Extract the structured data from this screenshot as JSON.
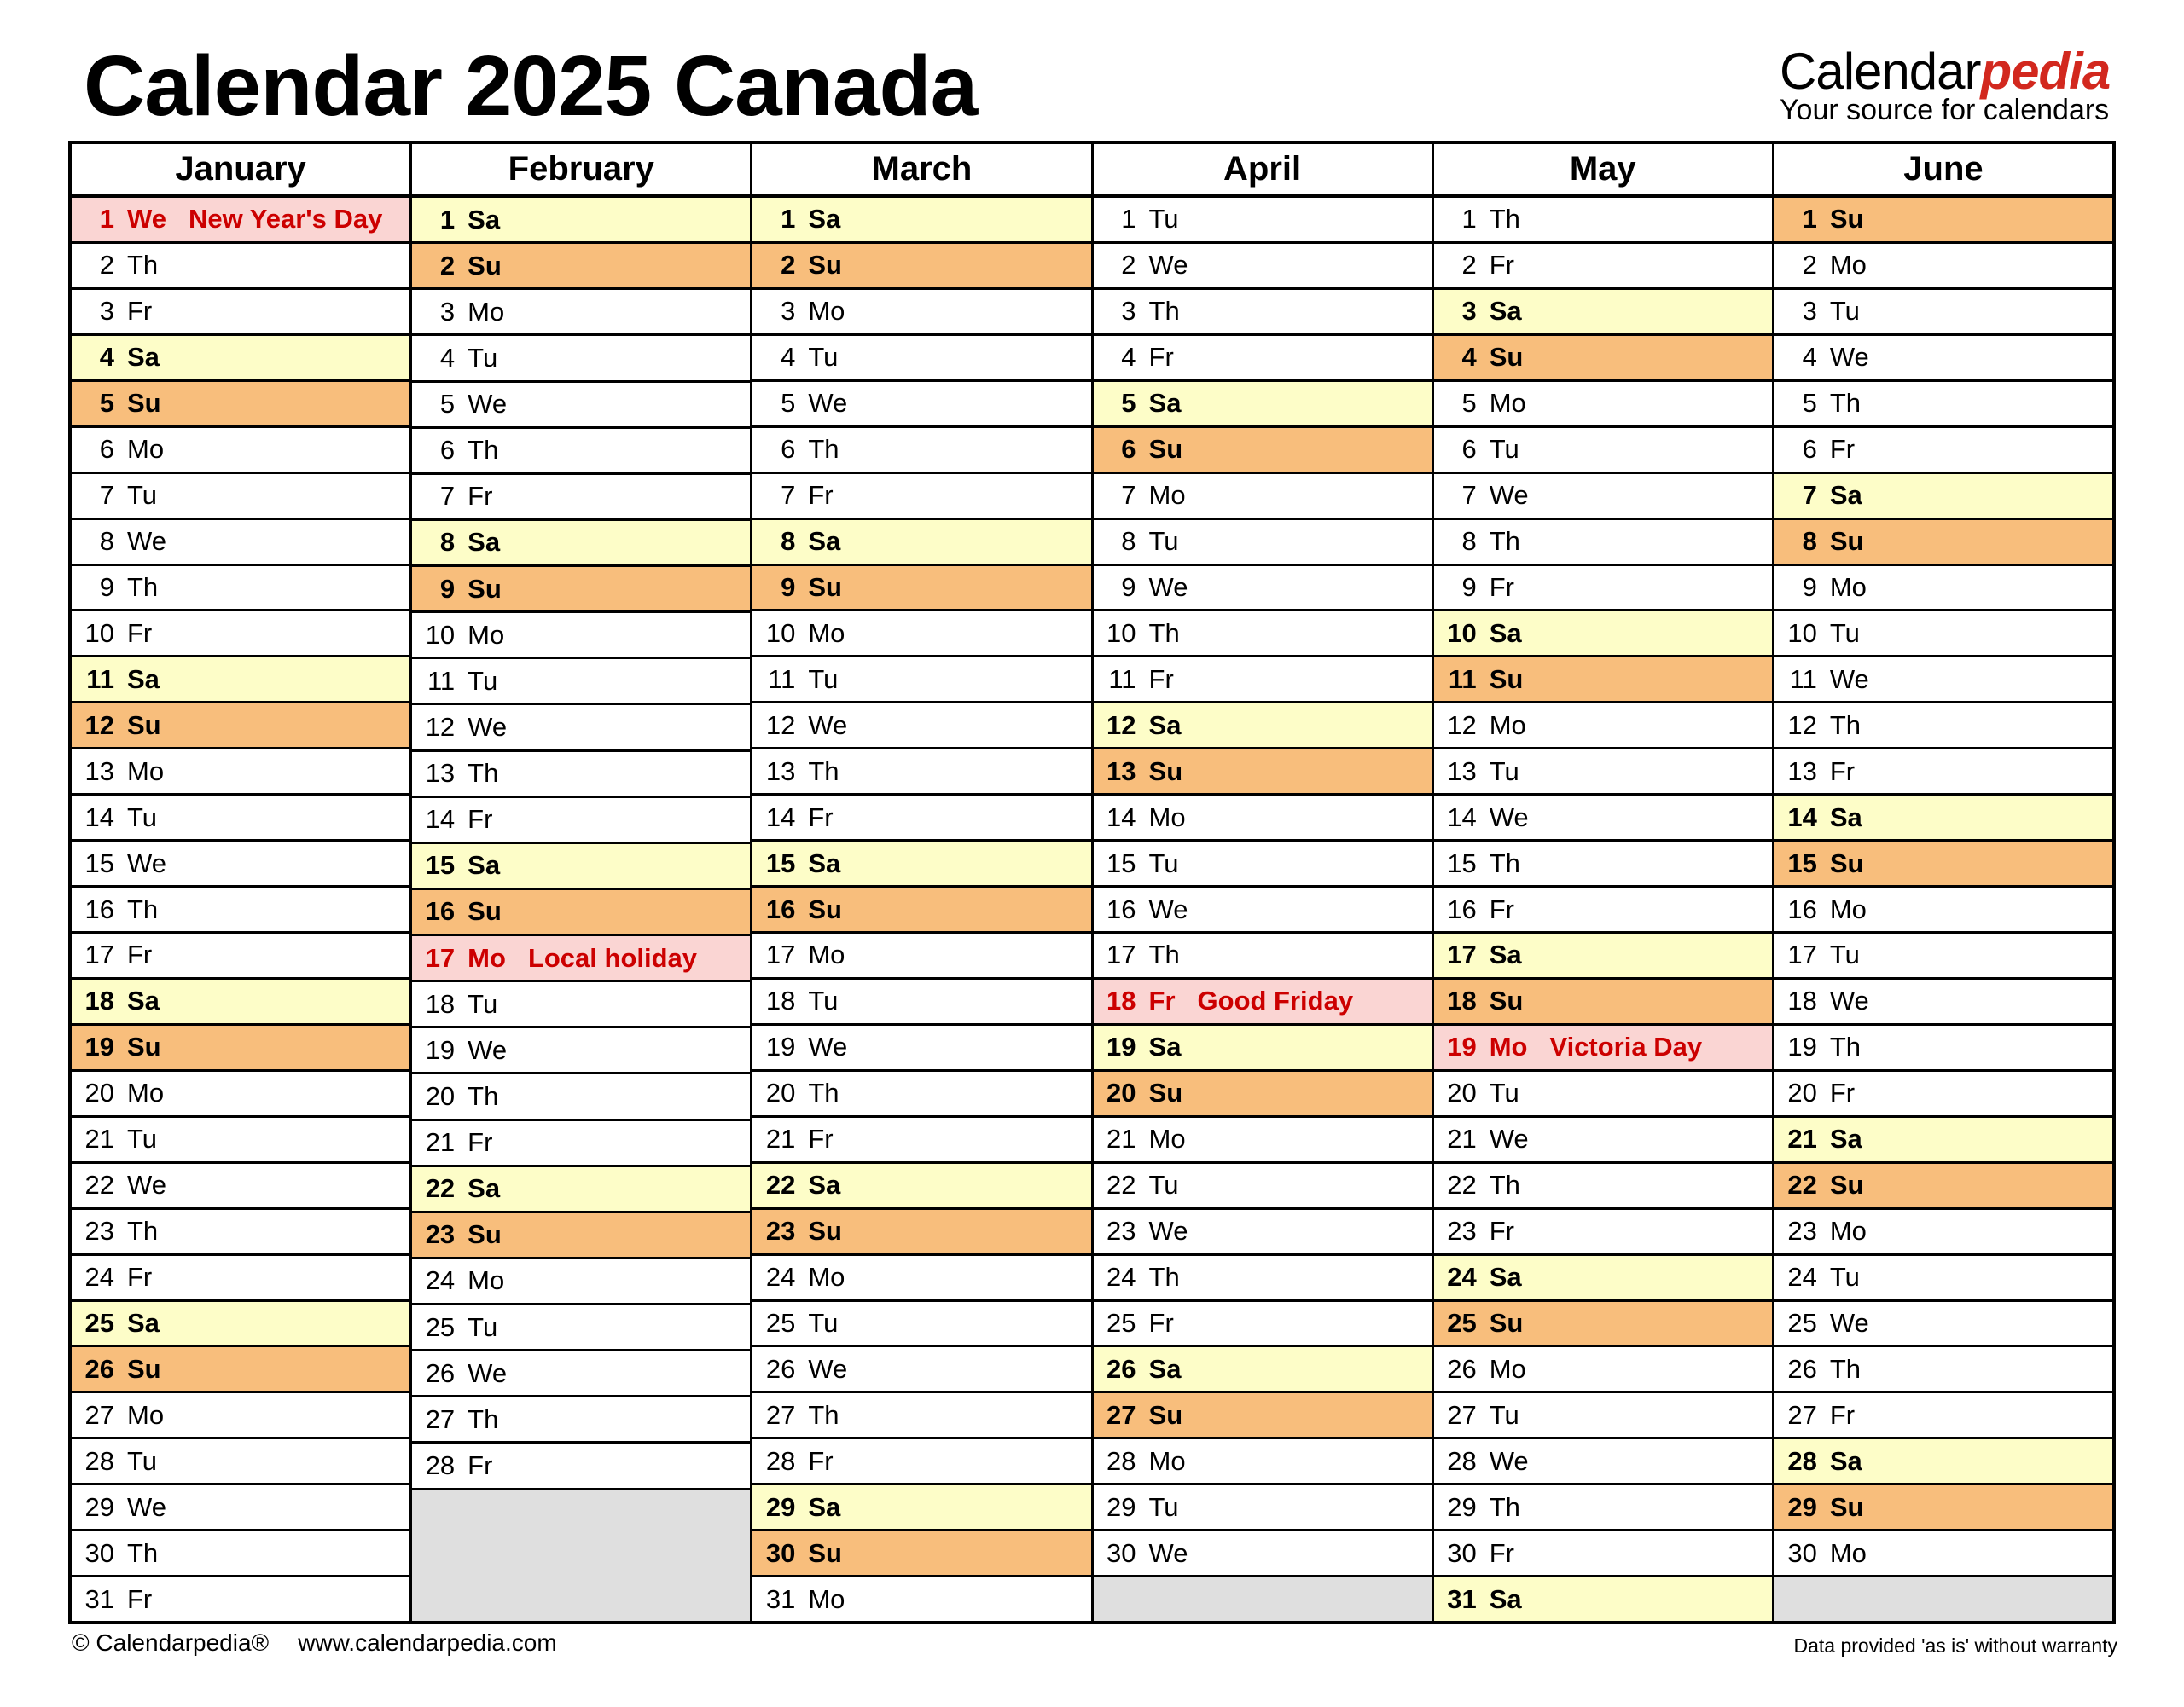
{
  "title": "Calendar 2025 Canada",
  "logo": {
    "brand_black": "Calendar",
    "brand_red": "pedia",
    "tagline": "Your source for calendars"
  },
  "footer": {
    "copyright": "© Calendarpedia®",
    "website": "www.calendarpedia.com",
    "disclaimer": "Data provided 'as is' without warranty"
  },
  "colors": {
    "saturday_bg": "#FDFDC8",
    "sunday_bg": "#F8BE7C",
    "holiday_bg": "#FAD5D3",
    "holiday_text": "#CC0000",
    "empty_bg": "#DFDFDF",
    "brand_red": "#D2281E"
  },
  "months": [
    {
      "name": "January",
      "days": [
        {
          "n": 1,
          "w": "We",
          "t": "hd",
          "h": "New Year's Day"
        },
        {
          "n": 2,
          "w": "Th",
          "t": "wd"
        },
        {
          "n": 3,
          "w": "Fr",
          "t": "wd"
        },
        {
          "n": 4,
          "w": "Sa",
          "t": "sa"
        },
        {
          "n": 5,
          "w": "Su",
          "t": "su"
        },
        {
          "n": 6,
          "w": "Mo",
          "t": "wd"
        },
        {
          "n": 7,
          "w": "Tu",
          "t": "wd"
        },
        {
          "n": 8,
          "w": "We",
          "t": "wd"
        },
        {
          "n": 9,
          "w": "Th",
          "t": "wd"
        },
        {
          "n": 10,
          "w": "Fr",
          "t": "wd"
        },
        {
          "n": 11,
          "w": "Sa",
          "t": "sa"
        },
        {
          "n": 12,
          "w": "Su",
          "t": "su"
        },
        {
          "n": 13,
          "w": "Mo",
          "t": "wd"
        },
        {
          "n": 14,
          "w": "Tu",
          "t": "wd"
        },
        {
          "n": 15,
          "w": "We",
          "t": "wd"
        },
        {
          "n": 16,
          "w": "Th",
          "t": "wd"
        },
        {
          "n": 17,
          "w": "Fr",
          "t": "wd"
        },
        {
          "n": 18,
          "w": "Sa",
          "t": "sa"
        },
        {
          "n": 19,
          "w": "Su",
          "t": "su"
        },
        {
          "n": 20,
          "w": "Mo",
          "t": "wd"
        },
        {
          "n": 21,
          "w": "Tu",
          "t": "wd"
        },
        {
          "n": 22,
          "w": "We",
          "t": "wd"
        },
        {
          "n": 23,
          "w": "Th",
          "t": "wd"
        },
        {
          "n": 24,
          "w": "Fr",
          "t": "wd"
        },
        {
          "n": 25,
          "w": "Sa",
          "t": "sa"
        },
        {
          "n": 26,
          "w": "Su",
          "t": "su"
        },
        {
          "n": 27,
          "w": "Mo",
          "t": "wd"
        },
        {
          "n": 28,
          "w": "Tu",
          "t": "wd"
        },
        {
          "n": 29,
          "w": "We",
          "t": "wd"
        },
        {
          "n": 30,
          "w": "Th",
          "t": "wd"
        },
        {
          "n": 31,
          "w": "Fr",
          "t": "wd"
        }
      ]
    },
    {
      "name": "February",
      "days": [
        {
          "n": 1,
          "w": "Sa",
          "t": "sa"
        },
        {
          "n": 2,
          "w": "Su",
          "t": "su"
        },
        {
          "n": 3,
          "w": "Mo",
          "t": "wd"
        },
        {
          "n": 4,
          "w": "Tu",
          "t": "wd"
        },
        {
          "n": 5,
          "w": "We",
          "t": "wd"
        },
        {
          "n": 6,
          "w": "Th",
          "t": "wd"
        },
        {
          "n": 7,
          "w": "Fr",
          "t": "wd"
        },
        {
          "n": 8,
          "w": "Sa",
          "t": "sa"
        },
        {
          "n": 9,
          "w": "Su",
          "t": "su"
        },
        {
          "n": 10,
          "w": "Mo",
          "t": "wd"
        },
        {
          "n": 11,
          "w": "Tu",
          "t": "wd"
        },
        {
          "n": 12,
          "w": "We",
          "t": "wd"
        },
        {
          "n": 13,
          "w": "Th",
          "t": "wd"
        },
        {
          "n": 14,
          "w": "Fr",
          "t": "wd"
        },
        {
          "n": 15,
          "w": "Sa",
          "t": "sa"
        },
        {
          "n": 16,
          "w": "Su",
          "t": "su"
        },
        {
          "n": 17,
          "w": "Mo",
          "t": "hd",
          "h": "Local holiday"
        },
        {
          "n": 18,
          "w": "Tu",
          "t": "wd"
        },
        {
          "n": 19,
          "w": "We",
          "t": "wd"
        },
        {
          "n": 20,
          "w": "Th",
          "t": "wd"
        },
        {
          "n": 21,
          "w": "Fr",
          "t": "wd"
        },
        {
          "n": 22,
          "w": "Sa",
          "t": "sa"
        },
        {
          "n": 23,
          "w": "Su",
          "t": "su"
        },
        {
          "n": 24,
          "w": "Mo",
          "t": "wd"
        },
        {
          "n": 25,
          "w": "Tu",
          "t": "wd"
        },
        {
          "n": 26,
          "w": "We",
          "t": "wd"
        },
        {
          "n": 27,
          "w": "Th",
          "t": "wd"
        },
        {
          "n": 28,
          "w": "Fr",
          "t": "wd"
        },
        {
          "t": "e"
        },
        {
          "t": "e"
        },
        {
          "t": "e"
        }
      ]
    },
    {
      "name": "March",
      "days": [
        {
          "n": 1,
          "w": "Sa",
          "t": "sa"
        },
        {
          "n": 2,
          "w": "Su",
          "t": "su"
        },
        {
          "n": 3,
          "w": "Mo",
          "t": "wd"
        },
        {
          "n": 4,
          "w": "Tu",
          "t": "wd"
        },
        {
          "n": 5,
          "w": "We",
          "t": "wd"
        },
        {
          "n": 6,
          "w": "Th",
          "t": "wd"
        },
        {
          "n": 7,
          "w": "Fr",
          "t": "wd"
        },
        {
          "n": 8,
          "w": "Sa",
          "t": "sa"
        },
        {
          "n": 9,
          "w": "Su",
          "t": "su"
        },
        {
          "n": 10,
          "w": "Mo",
          "t": "wd"
        },
        {
          "n": 11,
          "w": "Tu",
          "t": "wd"
        },
        {
          "n": 12,
          "w": "We",
          "t": "wd"
        },
        {
          "n": 13,
          "w": "Th",
          "t": "wd"
        },
        {
          "n": 14,
          "w": "Fr",
          "t": "wd"
        },
        {
          "n": 15,
          "w": "Sa",
          "t": "sa"
        },
        {
          "n": 16,
          "w": "Su",
          "t": "su"
        },
        {
          "n": 17,
          "w": "Mo",
          "t": "wd"
        },
        {
          "n": 18,
          "w": "Tu",
          "t": "wd"
        },
        {
          "n": 19,
          "w": "We",
          "t": "wd"
        },
        {
          "n": 20,
          "w": "Th",
          "t": "wd"
        },
        {
          "n": 21,
          "w": "Fr",
          "t": "wd"
        },
        {
          "n": 22,
          "w": "Sa",
          "t": "sa"
        },
        {
          "n": 23,
          "w": "Su",
          "t": "su"
        },
        {
          "n": 24,
          "w": "Mo",
          "t": "wd"
        },
        {
          "n": 25,
          "w": "Tu",
          "t": "wd"
        },
        {
          "n": 26,
          "w": "We",
          "t": "wd"
        },
        {
          "n": 27,
          "w": "Th",
          "t": "wd"
        },
        {
          "n": 28,
          "w": "Fr",
          "t": "wd"
        },
        {
          "n": 29,
          "w": "Sa",
          "t": "sa"
        },
        {
          "n": 30,
          "w": "Su",
          "t": "su"
        },
        {
          "n": 31,
          "w": "Mo",
          "t": "wd"
        }
      ]
    },
    {
      "name": "April",
      "days": [
        {
          "n": 1,
          "w": "Tu",
          "t": "wd"
        },
        {
          "n": 2,
          "w": "We",
          "t": "wd"
        },
        {
          "n": 3,
          "w": "Th",
          "t": "wd"
        },
        {
          "n": 4,
          "w": "Fr",
          "t": "wd"
        },
        {
          "n": 5,
          "w": "Sa",
          "t": "sa"
        },
        {
          "n": 6,
          "w": "Su",
          "t": "su"
        },
        {
          "n": 7,
          "w": "Mo",
          "t": "wd"
        },
        {
          "n": 8,
          "w": "Tu",
          "t": "wd"
        },
        {
          "n": 9,
          "w": "We",
          "t": "wd"
        },
        {
          "n": 10,
          "w": "Th",
          "t": "wd"
        },
        {
          "n": 11,
          "w": "Fr",
          "t": "wd"
        },
        {
          "n": 12,
          "w": "Sa",
          "t": "sa"
        },
        {
          "n": 13,
          "w": "Su",
          "t": "su"
        },
        {
          "n": 14,
          "w": "Mo",
          "t": "wd"
        },
        {
          "n": 15,
          "w": "Tu",
          "t": "wd"
        },
        {
          "n": 16,
          "w": "We",
          "t": "wd"
        },
        {
          "n": 17,
          "w": "Th",
          "t": "wd"
        },
        {
          "n": 18,
          "w": "Fr",
          "t": "hd",
          "h": "Good Friday"
        },
        {
          "n": 19,
          "w": "Sa",
          "t": "sa"
        },
        {
          "n": 20,
          "w": "Su",
          "t": "su"
        },
        {
          "n": 21,
          "w": "Mo",
          "t": "wd"
        },
        {
          "n": 22,
          "w": "Tu",
          "t": "wd"
        },
        {
          "n": 23,
          "w": "We",
          "t": "wd"
        },
        {
          "n": 24,
          "w": "Th",
          "t": "wd"
        },
        {
          "n": 25,
          "w": "Fr",
          "t": "wd"
        },
        {
          "n": 26,
          "w": "Sa",
          "t": "sa"
        },
        {
          "n": 27,
          "w": "Su",
          "t": "su"
        },
        {
          "n": 28,
          "w": "Mo",
          "t": "wd"
        },
        {
          "n": 29,
          "w": "Tu",
          "t": "wd"
        },
        {
          "n": 30,
          "w": "We",
          "t": "wd"
        },
        {
          "t": "e"
        }
      ]
    },
    {
      "name": "May",
      "days": [
        {
          "n": 1,
          "w": "Th",
          "t": "wd"
        },
        {
          "n": 2,
          "w": "Fr",
          "t": "wd"
        },
        {
          "n": 3,
          "w": "Sa",
          "t": "sa"
        },
        {
          "n": 4,
          "w": "Su",
          "t": "su"
        },
        {
          "n": 5,
          "w": "Mo",
          "t": "wd"
        },
        {
          "n": 6,
          "w": "Tu",
          "t": "wd"
        },
        {
          "n": 7,
          "w": "We",
          "t": "wd"
        },
        {
          "n": 8,
          "w": "Th",
          "t": "wd"
        },
        {
          "n": 9,
          "w": "Fr",
          "t": "wd"
        },
        {
          "n": 10,
          "w": "Sa",
          "t": "sa"
        },
        {
          "n": 11,
          "w": "Su",
          "t": "su"
        },
        {
          "n": 12,
          "w": "Mo",
          "t": "wd"
        },
        {
          "n": 13,
          "w": "Tu",
          "t": "wd"
        },
        {
          "n": 14,
          "w": "We",
          "t": "wd"
        },
        {
          "n": 15,
          "w": "Th",
          "t": "wd"
        },
        {
          "n": 16,
          "w": "Fr",
          "t": "wd"
        },
        {
          "n": 17,
          "w": "Sa",
          "t": "sa"
        },
        {
          "n": 18,
          "w": "Su",
          "t": "su"
        },
        {
          "n": 19,
          "w": "Mo",
          "t": "hd",
          "h": "Victoria Day"
        },
        {
          "n": 20,
          "w": "Tu",
          "t": "wd"
        },
        {
          "n": 21,
          "w": "We",
          "t": "wd"
        },
        {
          "n": 22,
          "w": "Th",
          "t": "wd"
        },
        {
          "n": 23,
          "w": "Fr",
          "t": "wd"
        },
        {
          "n": 24,
          "w": "Sa",
          "t": "sa"
        },
        {
          "n": 25,
          "w": "Su",
          "t": "su"
        },
        {
          "n": 26,
          "w": "Mo",
          "t": "wd"
        },
        {
          "n": 27,
          "w": "Tu",
          "t": "wd"
        },
        {
          "n": 28,
          "w": "We",
          "t": "wd"
        },
        {
          "n": 29,
          "w": "Th",
          "t": "wd"
        },
        {
          "n": 30,
          "w": "Fr",
          "t": "wd"
        },
        {
          "n": 31,
          "w": "Sa",
          "t": "sa"
        }
      ]
    },
    {
      "name": "June",
      "days": [
        {
          "n": 1,
          "w": "Su",
          "t": "su"
        },
        {
          "n": 2,
          "w": "Mo",
          "t": "wd"
        },
        {
          "n": 3,
          "w": "Tu",
          "t": "wd"
        },
        {
          "n": 4,
          "w": "We",
          "t": "wd"
        },
        {
          "n": 5,
          "w": "Th",
          "t": "wd"
        },
        {
          "n": 6,
          "w": "Fr",
          "t": "wd"
        },
        {
          "n": 7,
          "w": "Sa",
          "t": "sa"
        },
        {
          "n": 8,
          "w": "Su",
          "t": "su"
        },
        {
          "n": 9,
          "w": "Mo",
          "t": "wd"
        },
        {
          "n": 10,
          "w": "Tu",
          "t": "wd"
        },
        {
          "n": 11,
          "w": "We",
          "t": "wd"
        },
        {
          "n": 12,
          "w": "Th",
          "t": "wd"
        },
        {
          "n": 13,
          "w": "Fr",
          "t": "wd"
        },
        {
          "n": 14,
          "w": "Sa",
          "t": "sa"
        },
        {
          "n": 15,
          "w": "Su",
          "t": "su"
        },
        {
          "n": 16,
          "w": "Mo",
          "t": "wd"
        },
        {
          "n": 17,
          "w": "Tu",
          "t": "wd"
        },
        {
          "n": 18,
          "w": "We",
          "t": "wd"
        },
        {
          "n": 19,
          "w": "Th",
          "t": "wd"
        },
        {
          "n": 20,
          "w": "Fr",
          "t": "wd"
        },
        {
          "n": 21,
          "w": "Sa",
          "t": "sa"
        },
        {
          "n": 22,
          "w": "Su",
          "t": "su"
        },
        {
          "n": 23,
          "w": "Mo",
          "t": "wd"
        },
        {
          "n": 24,
          "w": "Tu",
          "t": "wd"
        },
        {
          "n": 25,
          "w": "We",
          "t": "wd"
        },
        {
          "n": 26,
          "w": "Th",
          "t": "wd"
        },
        {
          "n": 27,
          "w": "Fr",
          "t": "wd"
        },
        {
          "n": 28,
          "w": "Sa",
          "t": "sa"
        },
        {
          "n": 29,
          "w": "Su",
          "t": "su"
        },
        {
          "n": 30,
          "w": "Mo",
          "t": "wd"
        },
        {
          "t": "e"
        }
      ]
    }
  ]
}
